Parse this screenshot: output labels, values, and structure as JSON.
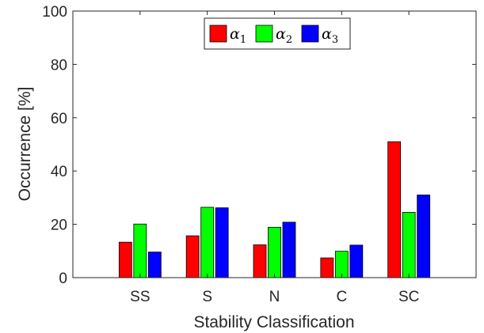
{
  "chart_data": {
    "type": "bar",
    "xlabel": "Stability Classification",
    "ylabel": "Occurrence [%]",
    "ylim": [
      0,
      100
    ],
    "yticks": [
      0,
      20,
      40,
      60,
      80,
      100
    ],
    "categories": [
      "SS",
      "S",
      "N",
      "C",
      "SC"
    ],
    "grid": false,
    "legend_position": "top-center",
    "series": [
      {
        "name": "α",
        "subscript": "1",
        "color": "#ff0000",
        "values": [
          13.3,
          15.7,
          12.3,
          7.4,
          51.0
        ]
      },
      {
        "name": "α",
        "subscript": "2",
        "color": "#00ff00",
        "values": [
          20.1,
          26.4,
          18.9,
          9.9,
          24.5
        ]
      },
      {
        "name": "α",
        "subscript": "3",
        "color": "#0000ff",
        "values": [
          9.6,
          26.2,
          20.8,
          12.2,
          31.0
        ]
      }
    ]
  }
}
